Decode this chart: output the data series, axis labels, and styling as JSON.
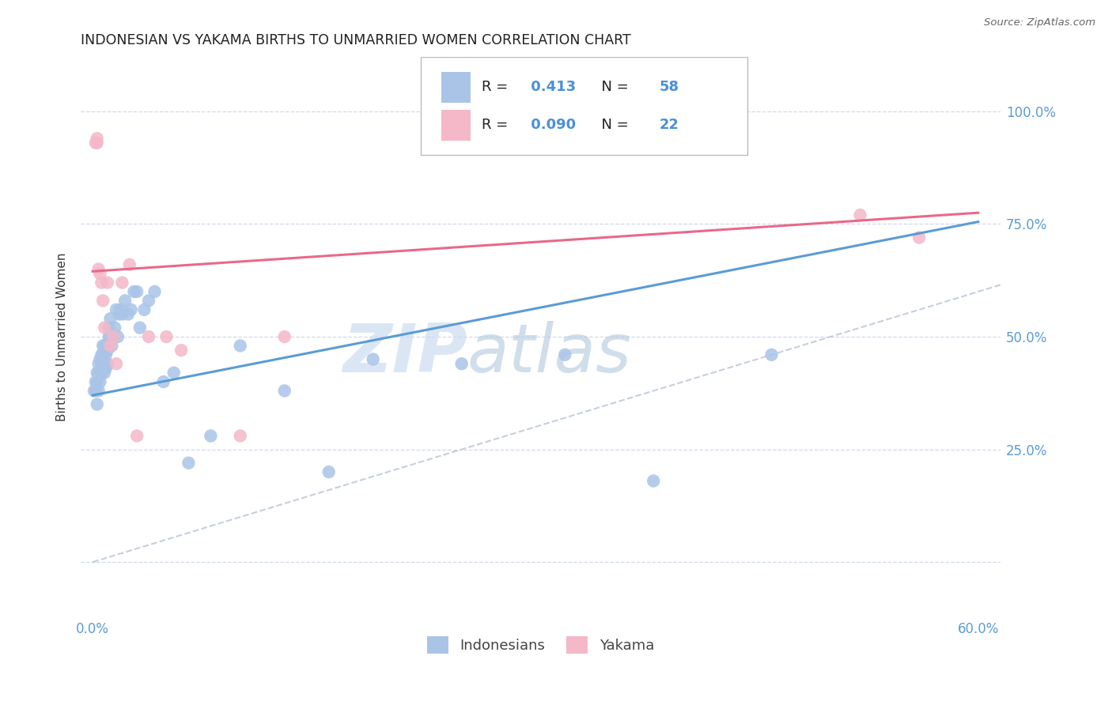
{
  "title": "INDONESIAN VS YAKAMA BIRTHS TO UNMARRIED WOMEN CORRELATION CHART",
  "source": "Source: ZipAtlas.com",
  "ylabel": "Births to Unmarried Women",
  "xlabel_ticks": [
    "0.0%",
    "",
    "",
    "",
    "",
    "",
    "60.0%"
  ],
  "ylabel_ticks": [
    "",
    "25.0%",
    "50.0%",
    "75.0%",
    "100.0%"
  ],
  "xlim": [
    -0.008,
    0.615
  ],
  "ylim": [
    -0.12,
    1.12
  ],
  "ytick_vals": [
    0.0,
    0.25,
    0.5,
    0.75,
    1.0
  ],
  "xtick_vals": [
    0.0,
    0.1,
    0.2,
    0.3,
    0.4,
    0.5,
    0.6
  ],
  "r_indonesian": 0.413,
  "n_indonesian": 58,
  "r_yakama": 0.09,
  "n_yakama": 22,
  "color_indonesian": "#aac4e8",
  "color_yakama": "#f4b8c8",
  "color_line_indonesian": "#5b9bd5",
  "color_line_yakama": "#e8698a",
  "color_diagonal": "#b8c4d4",
  "color_text_blue": "#4a90d9",
  "color_tick": "#5b9bd5",
  "watermark_zip": "ZIP",
  "watermark_atlas": "atlas",
  "indonesian_x": [
    0.001,
    0.002,
    0.002,
    0.003,
    0.003,
    0.003,
    0.004,
    0.004,
    0.004,
    0.005,
    0.005,
    0.005,
    0.006,
    0.006,
    0.006,
    0.007,
    0.007,
    0.007,
    0.008,
    0.008,
    0.008,
    0.009,
    0.009,
    0.01,
    0.01,
    0.011,
    0.011,
    0.012,
    0.012,
    0.013,
    0.014,
    0.015,
    0.016,
    0.017,
    0.018,
    0.019,
    0.02,
    0.022,
    0.024,
    0.026,
    0.028,
    0.03,
    0.032,
    0.035,
    0.038,
    0.042,
    0.048,
    0.055,
    0.065,
    0.08,
    0.1,
    0.13,
    0.16,
    0.19,
    0.25,
    0.32,
    0.38,
    0.46
  ],
  "indonesian_y": [
    0.38,
    0.38,
    0.4,
    0.35,
    0.4,
    0.42,
    0.38,
    0.42,
    0.44,
    0.4,
    0.42,
    0.45,
    0.42,
    0.44,
    0.46,
    0.44,
    0.46,
    0.48,
    0.42,
    0.44,
    0.48,
    0.43,
    0.46,
    0.44,
    0.47,
    0.5,
    0.52,
    0.5,
    0.54,
    0.48,
    0.5,
    0.52,
    0.56,
    0.5,
    0.55,
    0.56,
    0.55,
    0.58,
    0.55,
    0.56,
    0.6,
    0.6,
    0.52,
    0.56,
    0.58,
    0.6,
    0.4,
    0.42,
    0.22,
    0.28,
    0.48,
    0.38,
    0.2,
    0.45,
    0.44,
    0.46,
    0.18,
    0.46
  ],
  "yakama_x": [
    0.002,
    0.003,
    0.003,
    0.004,
    0.005,
    0.006,
    0.007,
    0.008,
    0.01,
    0.012,
    0.014,
    0.016,
    0.02,
    0.025,
    0.03,
    0.038,
    0.05,
    0.06,
    0.1,
    0.13,
    0.52,
    0.56
  ],
  "yakama_y": [
    0.93,
    0.93,
    0.94,
    0.65,
    0.64,
    0.62,
    0.58,
    0.52,
    0.62,
    0.48,
    0.5,
    0.44,
    0.62,
    0.66,
    0.28,
    0.5,
    0.5,
    0.47,
    0.28,
    0.5,
    0.77,
    0.72
  ],
  "line_indonesian": {
    "x0": 0.0,
    "y0": 0.37,
    "x1": 0.6,
    "y1": 0.755
  },
  "line_yakama": {
    "x0": 0.0,
    "y0": 0.645,
    "x1": 0.6,
    "y1": 0.775
  }
}
